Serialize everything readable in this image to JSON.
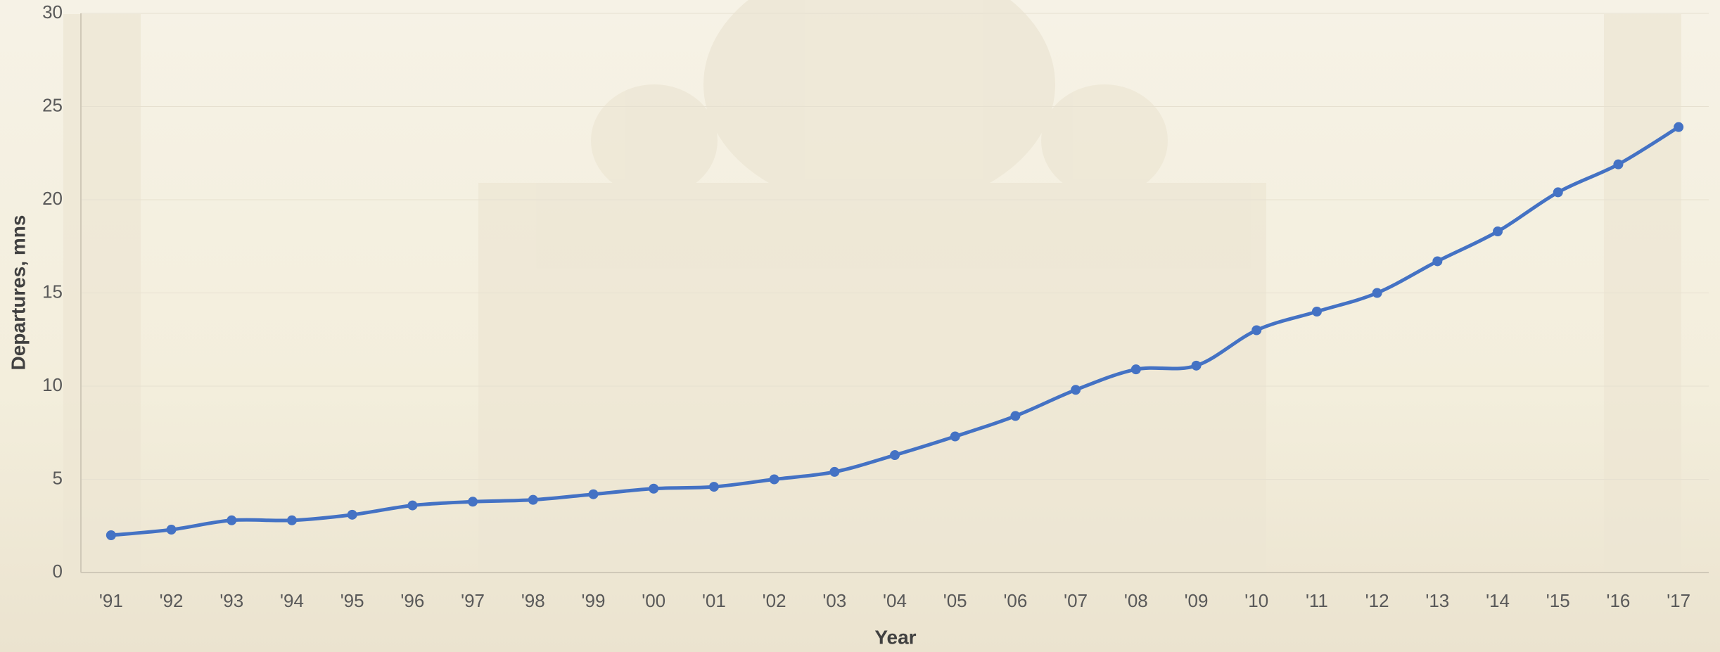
{
  "chart_data": {
    "type": "line",
    "x_label": "Year",
    "y_label": "Departures, mns",
    "categories": [
      "'91",
      "'92",
      "'93",
      "'94",
      "'95",
      "'96",
      "'97",
      "'98",
      "'99",
      "'00",
      "'01",
      "'02",
      "'03",
      "'04",
      "'05",
      "'06",
      "'07",
      "'08",
      "'09",
      "'10",
      "'11",
      "'12",
      "'13",
      "'14",
      "'15",
      "'16",
      "'17"
    ],
    "values": [
      2.0,
      2.3,
      2.8,
      2.8,
      3.1,
      3.6,
      3.8,
      3.9,
      4.2,
      4.5,
      4.6,
      5.0,
      5.4,
      6.3,
      7.3,
      8.4,
      9.8,
      10.9,
      11.1,
      13.0,
      14.0,
      15.0,
      16.7,
      18.3,
      20.4,
      21.9,
      23.9
    ],
    "color": "#4472c4",
    "ylim": [
      0,
      30
    ],
    "yticks": [
      0,
      5,
      10,
      15,
      20,
      25,
      30
    ],
    "grid": true
  }
}
